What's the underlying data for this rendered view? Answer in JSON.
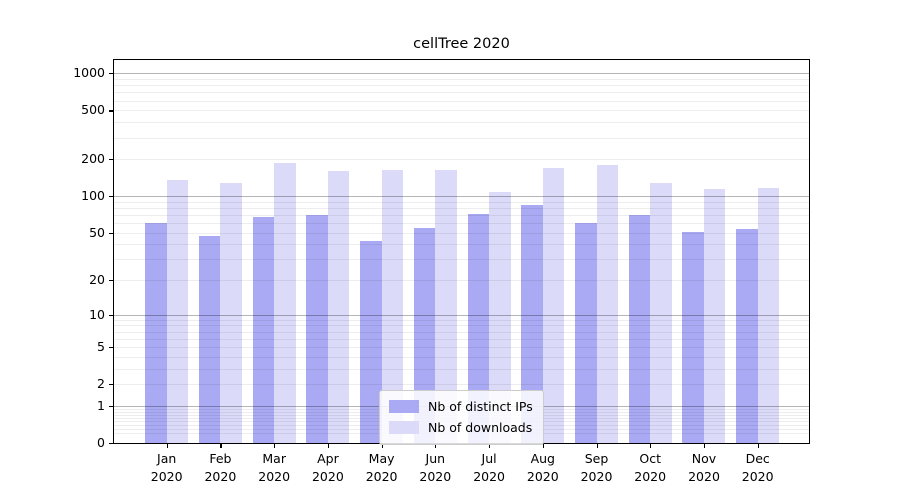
{
  "chart_data": {
    "type": "bar",
    "title": "cellTree 2020",
    "categories": [
      "Jan",
      "Feb",
      "Mar",
      "Apr",
      "May",
      "Jun",
      "Jul",
      "Aug",
      "Sep",
      "Oct",
      "Nov",
      "Dec"
    ],
    "category_year": "2020",
    "series": [
      {
        "name": "Nb of distinct IPs",
        "color": "#a9a9f4",
        "values": [
          60,
          47,
          67,
          70,
          43,
          55,
          71,
          85,
          60,
          70,
          51,
          54
        ]
      },
      {
        "name": "Nb of downloads",
        "color": "#dbdbf9",
        "values": [
          136,
          128,
          188,
          160,
          165,
          164,
          108,
          170,
          181,
          127,
          115,
          116
        ]
      }
    ],
    "xlabel": "",
    "ylabel": "",
    "y_axis": {
      "scale": "log1p",
      "tick_values": [
        0,
        1,
        2,
        5,
        10,
        20,
        50,
        100,
        200,
        500,
        1000
      ],
      "tick_labels": [
        "0",
        "1",
        "2",
        "5",
        "10",
        "20",
        "50",
        "100",
        "200",
        "500",
        "1000"
      ],
      "major_grid_values": [
        1,
        10,
        100,
        1000
      ],
      "top_value": 1280
    },
    "grid": {
      "enabled": true,
      "drawn_above_bars": true
    },
    "legend": {
      "position": "lower-center",
      "border_color": "#cccccc"
    }
  }
}
